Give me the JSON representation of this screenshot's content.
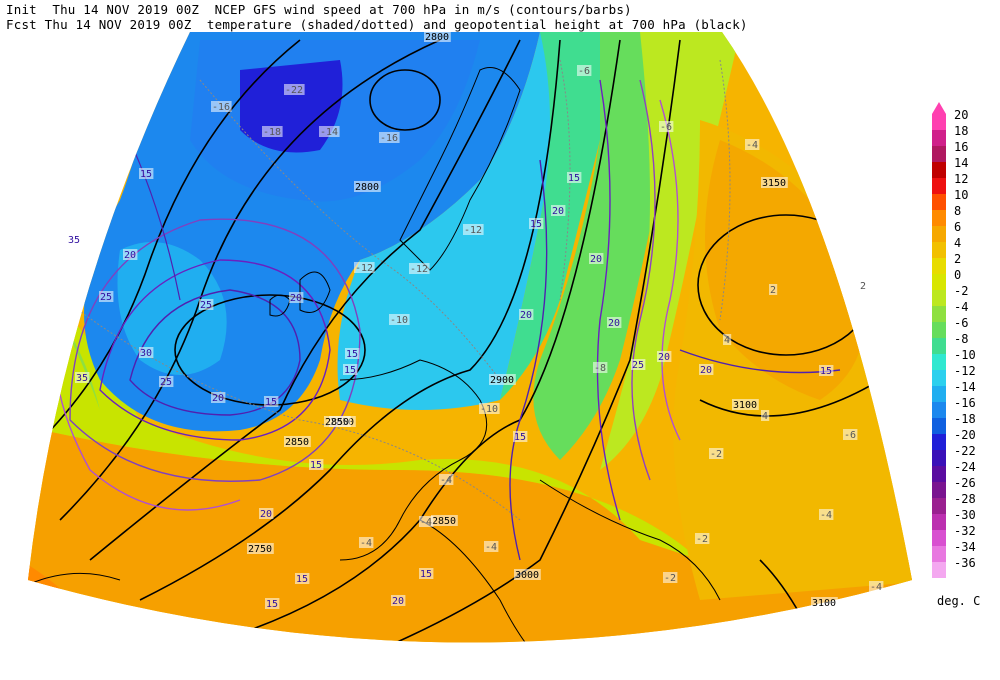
{
  "header": {
    "line1": "Init  Thu 14 NOV 2019 00Z  NCEP GFS wind speed at 700 hPa in m/s (contours/barbs)",
    "line2": "Fcst Thu 14 NOV 2019 00Z  temperature (shaded/dotted) and geopotential height at 700 hPa (black)"
  },
  "legend": {
    "labels": [
      "20",
      "18",
      "16",
      "14",
      "12",
      "10",
      "8",
      "6",
      "4",
      "2",
      "0",
      "-2",
      "-4",
      "-6",
      "-8",
      "-10",
      "-12",
      "-14",
      "-16",
      "-18",
      "-20",
      "-22",
      "-24",
      "-26",
      "-28",
      "-30",
      "-32",
      "-34",
      "-36"
    ],
    "colors": [
      "#ff40b0",
      "#d0208a",
      "#b01860",
      "#c00000",
      "#ee1010",
      "#ff5000",
      "#ff8a00",
      "#f6a800",
      "#f2c000",
      "#e8dc00",
      "#d8e600",
      "#bce820",
      "#8ee040",
      "#66dd5c",
      "#40dd90",
      "#30e8d0",
      "#2cd0ee",
      "#20aef0",
      "#1c88ee",
      "#1060e0",
      "#2020d8",
      "#3a10b8",
      "#5a0ca0",
      "#7a1490",
      "#9a2090",
      "#bc30b0",
      "#d850d0",
      "#e878e0",
      "#f4a8f0"
    ],
    "unit": "deg. C"
  },
  "map": {
    "height_labels": [
      "2800",
      "2800",
      "2850",
      "2850",
      "2900",
      "2850",
      "2850",
      "2750",
      "3000",
      "3100",
      "3100",
      "3150"
    ],
    "wind_labels": [
      "15",
      "20",
      "25",
      "25",
      "30",
      "35",
      "35",
      "25",
      "20",
      "15",
      "15",
      "20",
      "15",
      "20",
      "15",
      "20",
      "15",
      "20",
      "20",
      "25",
      "20",
      "20",
      "15",
      "15",
      "15",
      "15",
      "20",
      "20",
      "15",
      "15"
    ],
    "temp_labels": [
      "-22",
      "-18",
      "-16",
      "-16",
      "-14",
      "-12",
      "-12",
      "-12",
      "-10",
      "-10",
      "-4",
      "-4",
      "-4",
      "-4",
      "-2",
      "-2",
      "-2",
      "-6",
      "-6",
      "2",
      "2",
      "4",
      "4",
      "-4",
      "-8",
      "-6",
      "-4",
      "-4"
    ]
  }
}
